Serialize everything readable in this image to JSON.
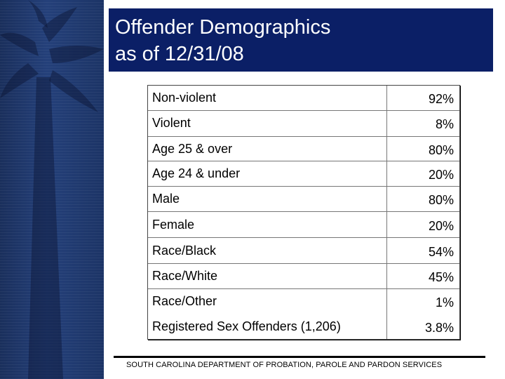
{
  "header": {
    "title": "Offender Demographics\nas of 12/31/08"
  },
  "table": {
    "rows": [
      {
        "label": "Non-violent",
        "value": "92%"
      },
      {
        "label": "Violent",
        "value": "8%"
      },
      {
        "label": "Age 25 & over",
        "value": "80%"
      },
      {
        "label": "Age 24 & under",
        "value": "20%"
      },
      {
        "label": "Male",
        "value": "80%"
      },
      {
        "label": "Female",
        "value": "20%"
      },
      {
        "label": "Race/Black",
        "value": "54%"
      },
      {
        "label": "Race/White",
        "value": "45%"
      },
      {
        "label": "Race/Other",
        "value": "1%"
      },
      {
        "label": "Registered Sex Offenders (1,206)",
        "value": "3.8%"
      }
    ]
  },
  "footer": {
    "text": "SOUTH CAROLINA DEPARTMENT OF PROBATION, PAROLE AND PARDON SERVICES"
  },
  "colors": {
    "title_bar": "#0b1f66",
    "side_panel": "#1a2f5c"
  }
}
